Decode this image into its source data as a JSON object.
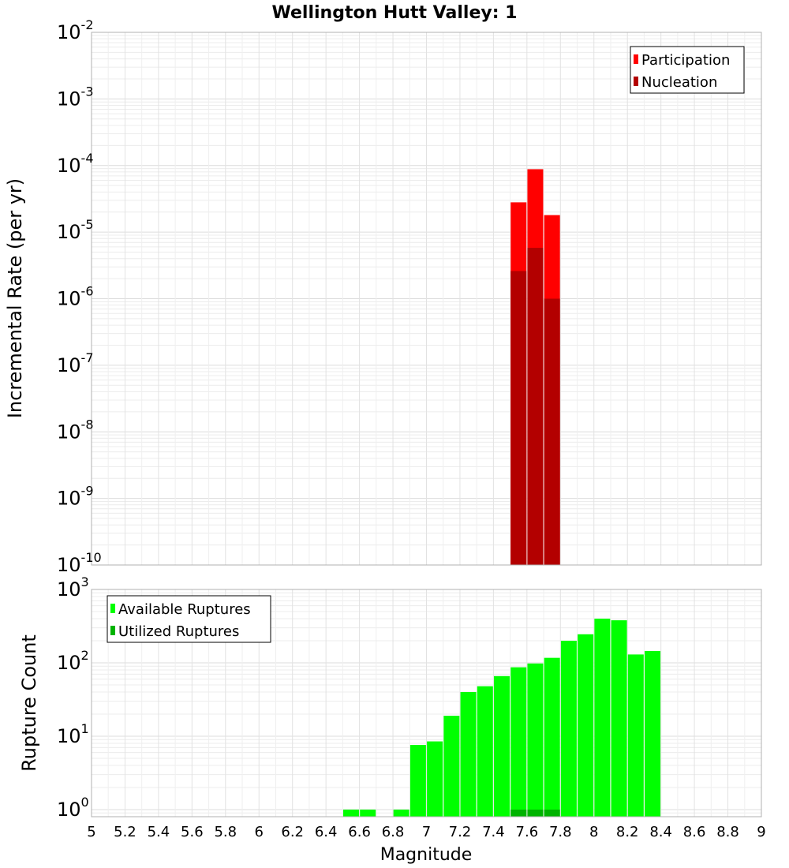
{
  "chart_data": [
    {
      "type": "bar",
      "title": "Wellington Hutt Valley: 1",
      "ylabel": "Incremental Rate (per yr)",
      "scale": "log",
      "ylim": [
        1e-10,
        0.01
      ],
      "xlim": [
        5,
        9
      ],
      "grid": true,
      "legend_position": "top-right",
      "y_ticks": [
        {
          "base": "10",
          "exp": "-10",
          "value": 1e-10
        },
        {
          "base": "10",
          "exp": "-9",
          "value": 1e-09
        },
        {
          "base": "10",
          "exp": "-8",
          "value": 1e-08
        },
        {
          "base": "10",
          "exp": "-7",
          "value": 1e-07
        },
        {
          "base": "10",
          "exp": "-6",
          "value": 1e-06
        },
        {
          "base": "10",
          "exp": "-5",
          "value": 1e-05
        },
        {
          "base": "10",
          "exp": "-4",
          "value": 0.0001
        },
        {
          "base": "10",
          "exp": "-3",
          "value": 0.001
        },
        {
          "base": "10",
          "exp": "-2",
          "value": 0.01
        }
      ],
      "series": [
        {
          "name": "Participation",
          "color": "#ff0000",
          "x": [
            7.55,
            7.65,
            7.75
          ],
          "values": [
            2.8e-05,
            8.8e-05,
            1.8e-05
          ]
        },
        {
          "name": "Nucleation",
          "color": "#b30000",
          "x": [
            7.55,
            7.65,
            7.75
          ],
          "values": [
            2.6e-06,
            5.8e-06,
            1e-06
          ]
        }
      ]
    },
    {
      "type": "bar",
      "ylabel": "Rupture Count",
      "xlabel": "Magnitude",
      "scale": "log",
      "ylim": [
        0.8,
        1000
      ],
      "xlim": [
        5,
        9
      ],
      "grid": true,
      "legend_position": "top-left",
      "x_ticks": [
        "5",
        "5.2",
        "5.4",
        "5.6",
        "5.8",
        "6",
        "6.2",
        "6.4",
        "6.6",
        "6.8",
        "7",
        "7.2",
        "7.4",
        "7.6",
        "7.8",
        "8",
        "8.2",
        "8.4",
        "8.6",
        "8.8",
        "9"
      ],
      "y_ticks": [
        {
          "base": "10",
          "exp": "0",
          "value": 1
        },
        {
          "base": "10",
          "exp": "1",
          "value": 10
        },
        {
          "base": "10",
          "exp": "2",
          "value": 100
        },
        {
          "base": "10",
          "exp": "3",
          "value": 1000
        }
      ],
      "series": [
        {
          "name": "Available Ruptures",
          "color": "#00ff00",
          "x": [
            6.55,
            6.65,
            6.85,
            6.95,
            7.05,
            7.15,
            7.25,
            7.35,
            7.45,
            7.55,
            7.65,
            7.75,
            7.85,
            7.95,
            8.05,
            8.15,
            8.25,
            8.35
          ],
          "values": [
            1,
            1,
            1,
            7.6,
            8.5,
            19,
            40,
            48,
            66,
            87,
            98,
            117,
            200,
            245,
            400,
            380,
            130,
            145
          ]
        },
        {
          "name": "Utilized Ruptures",
          "color": "#00b300",
          "x": [
            7.55,
            7.65,
            7.75
          ],
          "values": [
            1,
            1,
            1
          ]
        }
      ]
    }
  ]
}
